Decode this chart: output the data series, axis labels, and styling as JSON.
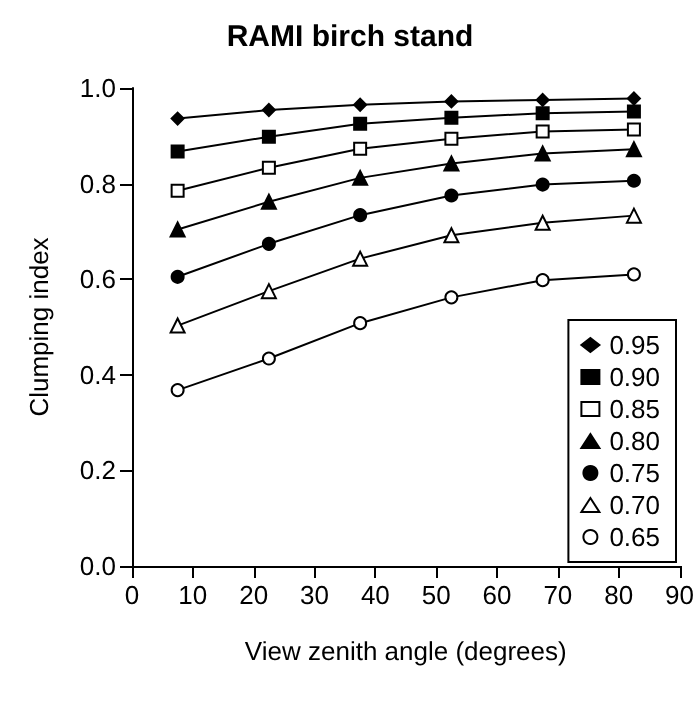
{
  "chart_data": {
    "type": "line",
    "title": "RAMI birch stand",
    "xlabel": "View zenith angle (degrees)",
    "ylabel": "Clumping index",
    "x": [
      7.5,
      22.5,
      37.5,
      52.5,
      67.5,
      82.5
    ],
    "series": [
      {
        "name": "0.95",
        "color": "#000000",
        "marker": "diamond",
        "values": [
          0.936,
          0.954,
          0.965,
          0.972,
          0.975,
          0.978
        ]
      },
      {
        "name": "0.90",
        "color": "#000000",
        "marker": "square",
        "values": [
          0.867,
          0.898,
          0.925,
          0.938,
          0.947,
          0.951
        ]
      },
      {
        "name": "0.85",
        "color": "#000000",
        "marker": "square",
        "values": [
          0.785,
          0.833,
          0.873,
          0.894,
          0.909,
          0.913
        ]
      },
      {
        "name": "0.80",
        "color": "#000000",
        "marker": "triangle",
        "values": [
          0.704,
          0.762,
          0.812,
          0.842,
          0.863,
          0.872
        ]
      },
      {
        "name": "0.75",
        "color": "#000000",
        "marker": "circle",
        "values": [
          0.605,
          0.674,
          0.734,
          0.775,
          0.798,
          0.806
        ]
      },
      {
        "name": "0.70",
        "color": "#000000",
        "marker": "triangle",
        "values": [
          0.503,
          0.575,
          0.643,
          0.692,
          0.718,
          0.733
        ]
      },
      {
        "name": "0.65",
        "color": "#000000",
        "marker": "circle",
        "values": [
          0.368,
          0.434,
          0.508,
          0.562,
          0.598,
          0.61
        ]
      }
    ],
    "xlim": [
      0,
      90
    ],
    "xticks": [
      0,
      10,
      20,
      30,
      40,
      50,
      60,
      70,
      80,
      90
    ],
    "ylim": [
      0,
      1
    ],
    "yticks": [
      {
        "value": 0,
        "label": "0.0"
      },
      {
        "value": 0.2,
        "label": "0.2"
      },
      {
        "value": 0.4,
        "label": "0.4"
      },
      {
        "value": 0.6,
        "label": "0.6"
      },
      {
        "value": 0.8,
        "label": "0.8"
      },
      {
        "value": 1,
        "label": "1.0"
      }
    ],
    "grid": false,
    "legend": "bottom right",
    "line_style": "solid"
  }
}
